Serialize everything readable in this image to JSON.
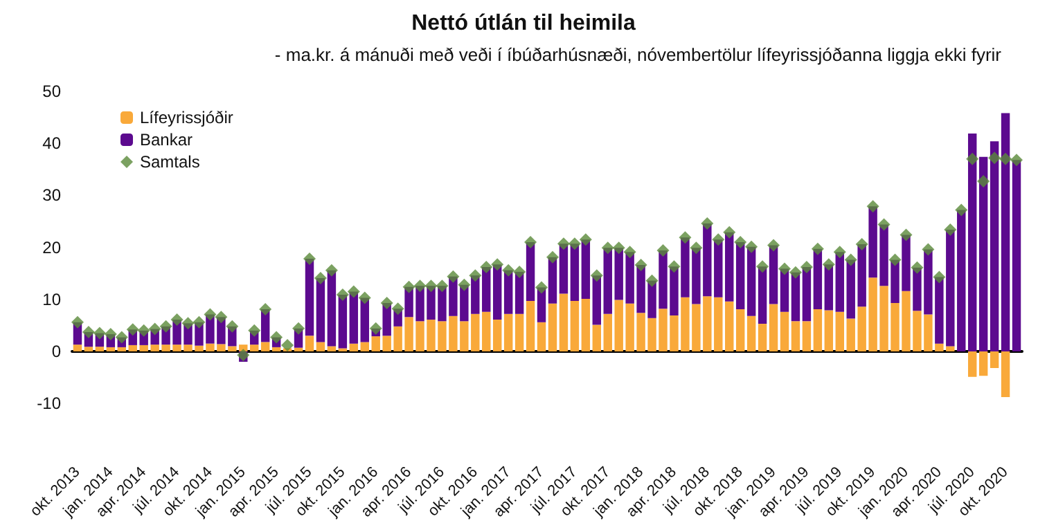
{
  "chart_data": {
    "type": "bar",
    "title": "Nettó útlán til heimila",
    "subtitle": "- ma.kr. á mánuði með veði í íbúðarhúsnæði, nóvembertölur lífeyrissjóðanna liggja ekki fyrir",
    "categories": [
      "okt. 2013",
      null,
      null,
      "jan. 2014",
      null,
      null,
      "apr. 2014",
      null,
      null,
      "júl. 2014",
      null,
      null,
      "okt. 2014",
      null,
      null,
      "jan. 2015",
      null,
      null,
      "apr. 2015",
      null,
      null,
      "júl. 2015",
      null,
      null,
      "okt. 2015",
      null,
      null,
      "jan. 2016",
      null,
      null,
      "apr. 2016",
      null,
      null,
      "júl. 2016",
      null,
      null,
      "okt. 2016",
      null,
      null,
      "jan. 2017",
      null,
      null,
      "apr. 2017",
      null,
      null,
      "júl. 2017",
      null,
      null,
      "okt. 2017",
      null,
      null,
      "jan. 2018",
      null,
      null,
      "apr. 2018",
      null,
      null,
      "júl. 2018",
      null,
      null,
      "okt. 2018",
      null,
      null,
      "jan. 2019",
      null,
      null,
      "apr. 2019",
      null,
      null,
      "júl. 2019",
      null,
      null,
      "okt. 2019",
      null,
      null,
      "jan. 2020",
      null,
      null,
      "apr. 2020",
      null,
      null,
      "júl. 2020",
      null,
      null,
      "okt. 2020",
      null
    ],
    "series": [
      {
        "name": "Lífeyrissjóðir",
        "color": "#f9a93a",
        "values": [
          1.3,
          0.9,
          0.9,
          0.8,
          0.8,
          1.2,
          1.2,
          1.3,
          1.3,
          1.3,
          1.3,
          1.1,
          1.5,
          1.4,
          1.0,
          1.3,
          1.3,
          1.8,
          0.8,
          0.6,
          0.7,
          3.0,
          1.8,
          1.0,
          0.6,
          1.5,
          1.8,
          2.9,
          3.0,
          4.8,
          6.6,
          5.8,
          6.1,
          5.8,
          6.8,
          5.8,
          7.2,
          7.6,
          6.1,
          7.2,
          7.2,
          9.7,
          5.6,
          9.2,
          11.1,
          9.7,
          10.1,
          5.1,
          7.2,
          9.9,
          9.2,
          7.4,
          6.4,
          8.2,
          6.9,
          10.4,
          9.1,
          10.6,
          10.4,
          9.6,
          8.1,
          6.8,
          5.3,
          9.1,
          7.6,
          5.8,
          5.8,
          8.1,
          7.9,
          7.6,
          6.3,
          8.6,
          14.2,
          12.6,
          9.3,
          11.6,
          7.8,
          7.1,
          1.5,
          1.0,
          0,
          -4.9,
          -4.7,
          -3.2,
          -8.8,
          null
        ]
      },
      {
        "name": "Bankar",
        "color": "#5c0a8f",
        "values": [
          4.3,
          2.8,
          2.6,
          2.5,
          1.9,
          3.0,
          2.8,
          3.0,
          3.5,
          4.8,
          4.1,
          4.5,
          5.6,
          5.2,
          3.8,
          -2.0,
          2.7,
          6.3,
          1.9,
          null,
          3.7,
          14.8,
          12.3,
          14.6,
          10.3,
          10.0,
          8.5,
          1.5,
          6.3,
          3.4,
          5.8,
          6.8,
          6.5,
          6.8,
          7.6,
          7.0,
          7.4,
          8.6,
          10.6,
          8.4,
          8.1,
          11.3,
          6.7,
          8.9,
          9.6,
          11.0,
          11.4,
          9.5,
          12.7,
          10.0,
          9.9,
          9.2,
          7.2,
          11.2,
          9.4,
          11.5,
          10.8,
          14.0,
          11.1,
          13.3,
          12.9,
          13.3,
          11.0,
          11.3,
          8.3,
          9.4,
          10.4,
          11.6,
          8.8,
          11.5,
          11.3,
          12.0,
          13.7,
          11.8,
          8.3,
          10.8,
          8.3,
          12.5,
          12.8,
          22.4,
          27.2,
          41.9,
          37.4,
          40.4,
          45.8,
          36.8
        ]
      },
      {
        "name": "Samtals",
        "type": "scatter",
        "color": "#5a8a3a",
        "values": [
          5.6,
          3.7,
          3.5,
          3.3,
          2.7,
          4.2,
          4.0,
          4.3,
          4.8,
          6.1,
          5.4,
          5.6,
          7.1,
          6.6,
          4.8,
          -0.7,
          4.0,
          8.1,
          2.7,
          1.2,
          4.4,
          17.8,
          14.1,
          15.6,
          10.9,
          11.5,
          10.3,
          4.4,
          9.3,
          8.2,
          12.4,
          12.6,
          12.6,
          12.6,
          14.4,
          12.8,
          14.6,
          16.2,
          16.7,
          15.6,
          15.3,
          21.0,
          12.3,
          18.1,
          20.7,
          20.7,
          21.5,
          14.6,
          19.9,
          19.9,
          19.1,
          16.6,
          13.6,
          19.4,
          16.3,
          21.9,
          19.9,
          24.6,
          21.5,
          22.9,
          21.0,
          20.1,
          16.3,
          20.4,
          15.9,
          15.2,
          16.2,
          19.7,
          16.7,
          19.1,
          17.6,
          20.6,
          27.9,
          24.4,
          17.6,
          22.4,
          16.1,
          19.6,
          14.3,
          23.4,
          27.2,
          37.0,
          32.7,
          37.2,
          37.0,
          36.8
        ]
      }
    ],
    "stacked": true,
    "marker": "diamond",
    "ylim": [
      -10,
      50
    ],
    "yticks": [
      -10,
      0,
      10,
      20,
      30,
      40,
      50
    ],
    "legend": "top left"
  }
}
